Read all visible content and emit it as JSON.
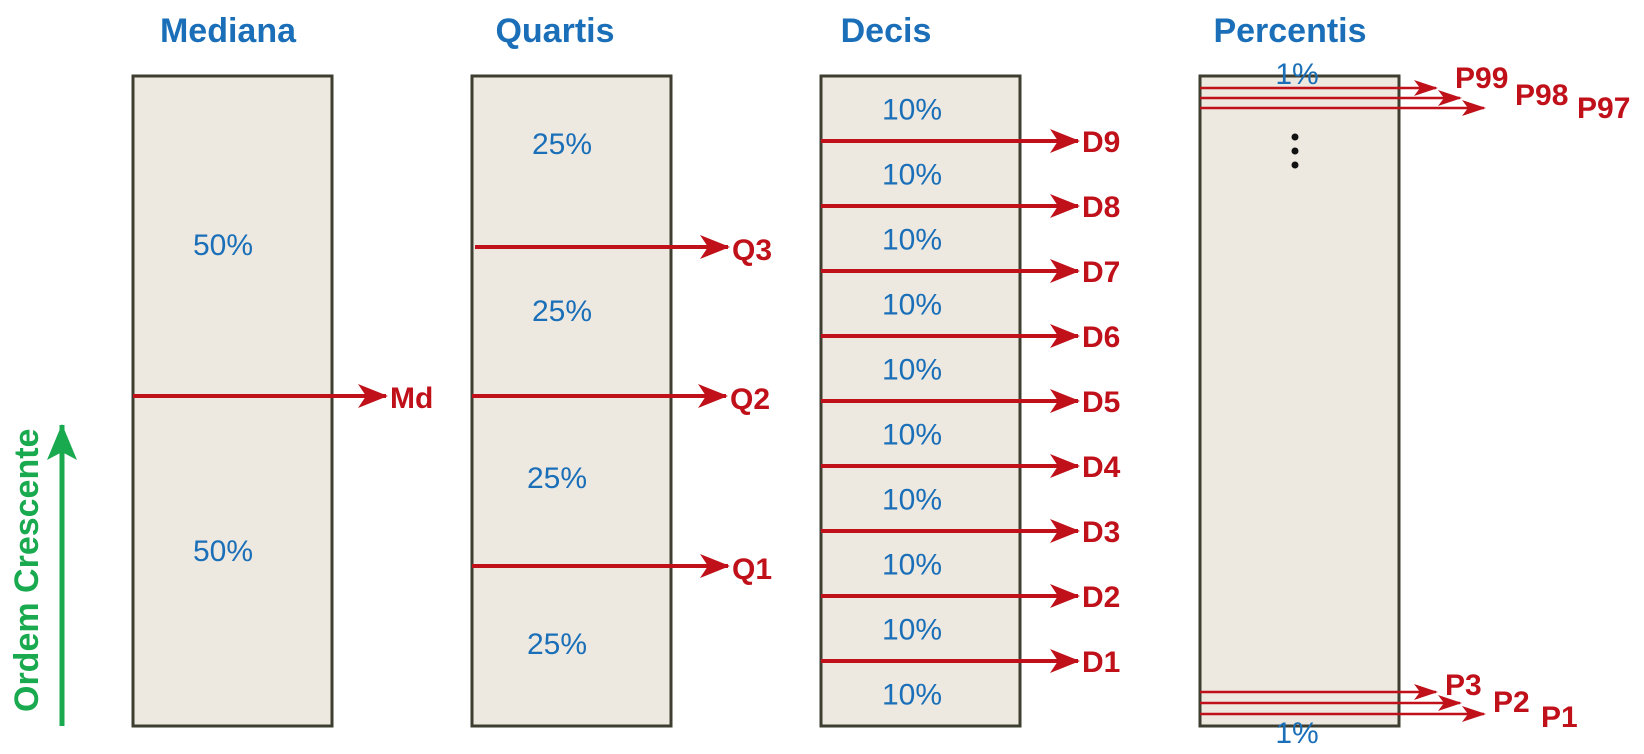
{
  "colors": {
    "title": "#1a6fb8",
    "percent_text": "#1a6fb8",
    "marker": "#c0101a",
    "box_fill": "#ede9e1",
    "box_border": "#3e3e30",
    "order_arrow": "#19a94f"
  },
  "order_label": "Ordem Crescente",
  "mediana": {
    "title": "Mediana",
    "segments": [
      "50%",
      "50%"
    ],
    "markers": [
      "Md"
    ]
  },
  "quartis": {
    "title": "Quartis",
    "segments": [
      "25%",
      "25%",
      "25%",
      "25%"
    ],
    "markers": [
      "Q3",
      "Q2",
      "Q1"
    ]
  },
  "decis": {
    "title": "Decis",
    "segments": [
      "10%",
      "10%",
      "10%",
      "10%",
      "10%",
      "10%",
      "10%",
      "10%",
      "10%",
      "10%"
    ],
    "markers": [
      "D9",
      "D8",
      "D7",
      "D6",
      "D5",
      "D4",
      "D3",
      "D2",
      "D1"
    ]
  },
  "percentis": {
    "title": "Percentis",
    "top_segment": "1%",
    "bottom_segment": "1%",
    "ellipsis": "⋮",
    "top_markers": [
      "P99",
      "P98",
      "P97"
    ],
    "bottom_markers": [
      "P3",
      "P2",
      "P1"
    ]
  }
}
